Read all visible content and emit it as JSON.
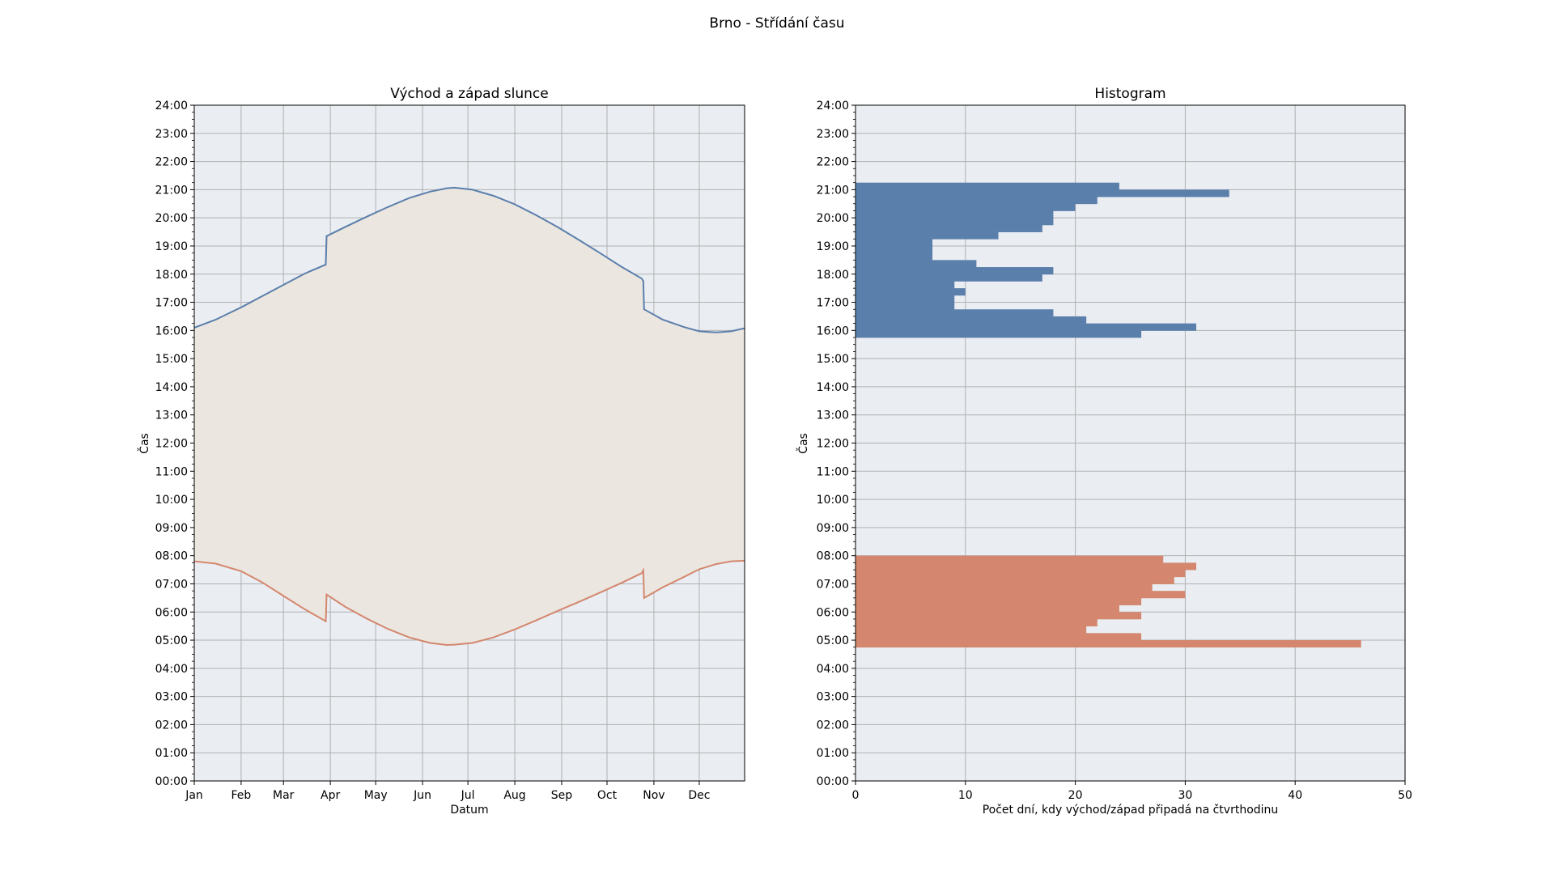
{
  "figure": {
    "title": "Brno - Střídání času"
  },
  "colors": {
    "background": "#ffffff",
    "plot_area": "#eaeef3",
    "grid": "#b0b0b0",
    "sunset": "#5b7fab",
    "sunrise": "#d4876e",
    "daylight_fill": "#ebe6df"
  },
  "chart_data": [
    {
      "type": "area",
      "title": "Východ a západ slunce",
      "xlabel": "Datum",
      "ylabel": "Čas",
      "x_unit": "day_of_year",
      "xlim": [
        1,
        365
      ],
      "ylim": [
        0,
        24
      ],
      "grid": true,
      "x_ticks": [
        {
          "label": "Jan",
          "value": 1
        },
        {
          "label": "Feb",
          "value": 32
        },
        {
          "label": "Mar",
          "value": 60
        },
        {
          "label": "Apr",
          "value": 91
        },
        {
          "label": "May",
          "value": 121
        },
        {
          "label": "Jun",
          "value": 152
        },
        {
          "label": "Jul",
          "value": 182
        },
        {
          "label": "Aug",
          "value": 213
        },
        {
          "label": "Sep",
          "value": 244
        },
        {
          "label": "Oct",
          "value": 274
        },
        {
          "label": "Nov",
          "value": 305
        },
        {
          "label": "Dec",
          "value": 335
        }
      ],
      "y_ticks": [
        "00:00",
        "01:00",
        "02:00",
        "03:00",
        "04:00",
        "05:00",
        "06:00",
        "07:00",
        "08:00",
        "09:00",
        "10:00",
        "11:00",
        "12:00",
        "13:00",
        "14:00",
        "15:00",
        "16:00",
        "17:00",
        "18:00",
        "19:00",
        "20:00",
        "21:00",
        "22:00",
        "23:00",
        "24:00"
      ],
      "series": [
        {
          "key": "sunset",
          "x": [
            1,
            15,
            32,
            46,
            60,
            74,
            88,
            88.5,
            101,
            115,
            129,
            143,
            157,
            168,
            173,
            185,
            199,
            213,
            227,
            241,
            255,
            269,
            283,
            297,
            298,
            298.5,
            311,
            325,
            335,
            346,
            356,
            365
          ],
          "y": [
            16.1,
            16.38,
            16.82,
            17.22,
            17.62,
            18.02,
            18.34,
            19.35,
            19.68,
            20.04,
            20.38,
            20.7,
            20.93,
            21.05,
            21.07,
            21.0,
            20.78,
            20.48,
            20.1,
            19.68,
            19.23,
            18.76,
            18.28,
            17.84,
            17.75,
            16.75,
            16.38,
            16.12,
            15.97,
            15.93,
            15.97,
            16.08
          ]
        },
        {
          "key": "sunrise",
          "x": [
            1,
            15,
            32,
            46,
            60,
            74,
            88,
            88.5,
            101,
            115,
            129,
            143,
            157,
            168,
            173,
            185,
            199,
            213,
            227,
            241,
            255,
            269,
            283,
            297,
            298,
            298.5,
            311,
            325,
            335,
            346,
            356,
            365
          ],
          "y": [
            7.8,
            7.72,
            7.45,
            7.05,
            6.57,
            6.1,
            5.67,
            6.62,
            6.18,
            5.77,
            5.4,
            5.1,
            4.9,
            4.83,
            4.84,
            4.9,
            5.1,
            5.38,
            5.7,
            6.03,
            6.35,
            6.68,
            7.02,
            7.38,
            7.48,
            6.5,
            6.88,
            7.25,
            7.52,
            7.7,
            7.8,
            7.82
          ]
        }
      ]
    },
    {
      "type": "bar",
      "orientation": "horizontal",
      "title": "Histogram",
      "xlabel": "Počet dní, kdy východ/západ připadá na čtvrthodinu",
      "ylabel": "Čas",
      "xlim": [
        0,
        50
      ],
      "ylim": [
        0,
        24
      ],
      "grid": true,
      "x_ticks": [
        "0",
        "10",
        "20",
        "30",
        "40",
        "50"
      ],
      "y_ticks": [
        "00:00",
        "01:00",
        "02:00",
        "03:00",
        "04:00",
        "05:00",
        "06:00",
        "07:00",
        "08:00",
        "09:00",
        "10:00",
        "11:00",
        "12:00",
        "13:00",
        "14:00",
        "15:00",
        "16:00",
        "17:00",
        "18:00",
        "19:00",
        "20:00",
        "21:00",
        "22:00",
        "23:00",
        "24:00"
      ],
      "bin_width_hours": 0.25,
      "series": [
        {
          "key": "sunset",
          "bin_start": [
            15.75,
            16.0,
            16.25,
            16.5,
            16.75,
            17.0,
            17.25,
            17.5,
            17.75,
            18.0,
            18.25,
            18.5,
            18.75,
            19.0,
            19.25,
            19.5,
            19.75,
            20.0,
            20.25,
            20.5,
            20.75,
            21.0
          ],
          "counts": [
            26,
            31,
            21,
            18,
            9,
            9,
            10,
            9,
            17,
            18,
            11,
            7,
            7,
            7,
            13,
            17,
            18,
            18,
            20,
            22,
            34,
            24
          ]
        },
        {
          "key": "sunrise",
          "bin_start": [
            4.75,
            5.0,
            5.25,
            5.5,
            5.75,
            6.0,
            6.25,
            6.5,
            6.75,
            7.0,
            7.25,
            7.5,
            7.75
          ],
          "counts": [
            46,
            26,
            21,
            22,
            26,
            24,
            26,
            30,
            27,
            29,
            30,
            31,
            28
          ]
        }
      ]
    }
  ]
}
